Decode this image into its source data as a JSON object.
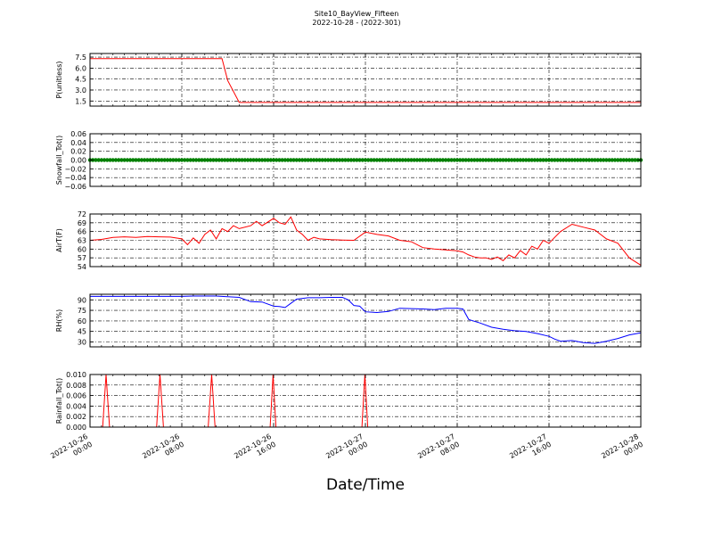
{
  "figure": {
    "title": "Site10_BayView_Fifteen",
    "subtitle": "2022-10-28 - (2022-301)",
    "xlabel": "Date/Time"
  },
  "chart_data": [
    {
      "type": "line",
      "ylabel": "P(unitless)",
      "color": "#ff0000",
      "ylim": [
        0.8,
        8.0
      ],
      "yticks": [
        1.5,
        3.0,
        4.5,
        6.0,
        7.5
      ],
      "ytick_labels": [
        "1.5",
        "3.0",
        "4.5",
        "6.0",
        "7.5"
      ],
      "x_hours": [
        0,
        4,
        8,
        10.5,
        11,
        11.5,
        12,
        13,
        14,
        16,
        20,
        24,
        28,
        32,
        36,
        40,
        44,
        48
      ],
      "y": [
        7.3,
        7.3,
        7.3,
        7.3,
        7.3,
        7.3,
        4.3,
        1.3,
        1.3,
        1.3,
        1.3,
        1.3,
        1.3,
        1.3,
        1.3,
        1.3,
        1.3,
        1.3
      ],
      "x_labels": [
        "2022-10-26\n00:00",
        "2022-10-26\n08:00",
        "2022-10-26\n16:00",
        "2022-10-27\n00:00",
        "2022-10-27\n08:00",
        "2022-10-27\n16:00",
        "2022-10-28\n00:00"
      ],
      "grid": true
    },
    {
      "type": "line",
      "ylabel": "Snowfall_Tot()",
      "color": "#008000",
      "ylim": [
        -0.06,
        0.06
      ],
      "yticks": [
        -0.06,
        -0.04,
        -0.02,
        0.0,
        0.02,
        0.04,
        0.06
      ],
      "ytick_labels": [
        "−0.06",
        "−0.04",
        "−0.02",
        "0.00",
        "0.02",
        "0.04",
        "0.06"
      ],
      "x_hours": [
        0,
        48
      ],
      "y": [
        0,
        0
      ],
      "markers": true,
      "grid": true
    },
    {
      "type": "line",
      "ylabel": "AirT(F)",
      "color": "#ff0000",
      "ylim": [
        54,
        72
      ],
      "yticks": [
        54,
        57,
        60,
        63,
        66,
        69,
        72
      ],
      "ytick_labels": [
        "54",
        "57",
        "60",
        "63",
        "66",
        "69",
        "72"
      ],
      "x_hours": [
        0,
        1,
        2,
        3,
        4,
        5,
        6,
        7,
        8,
        8.5,
        9,
        9.5,
        10,
        10.5,
        11,
        11.5,
        12,
        12.5,
        13,
        14,
        14.5,
        15,
        16,
        16.5,
        17,
        17.5,
        18,
        18.5,
        19,
        19.5,
        20,
        21,
        22,
        23,
        24,
        25,
        26,
        27,
        28,
        29,
        30,
        31,
        32,
        32.5,
        33,
        33.5,
        34,
        34.5,
        35,
        35.5,
        36,
        36.5,
        37,
        37.5,
        38,
        38.5,
        39,
        39.5,
        40,
        40.5,
        41,
        42,
        43,
        44,
        45,
        46,
        47,
        48
      ],
      "y": [
        63,
        63.3,
        64,
        64.2,
        64,
        64.3,
        64.2,
        64.1,
        63.5,
        61.5,
        63.8,
        62,
        65,
        66.5,
        63.5,
        67,
        66,
        68,
        67,
        68,
        69.5,
        68,
        70.5,
        69,
        68.5,
        71,
        66.5,
        65,
        63,
        64,
        63.5,
        63.2,
        63.1,
        63,
        65.8,
        65,
        64.5,
        63,
        62.5,
        60.5,
        60,
        59.7,
        59.4,
        59,
        58,
        57.3,
        57,
        57,
        56.5,
        57.3,
        56,
        58,
        57,
        59.5,
        58,
        61,
        60,
        63,
        62,
        64,
        66,
        68.5,
        67.5,
        66.5,
        63.5,
        62,
        57,
        54.5
      ],
      "grid": true
    },
    {
      "type": "line",
      "ylabel": "RH(%)",
      "color": "#0000ff",
      "ylim": [
        23,
        98
      ],
      "yticks": [
        30,
        45,
        60,
        75,
        90
      ],
      "ytick_labels": [
        "30",
        "45",
        "60",
        "75",
        "90"
      ],
      "x_hours": [
        0,
        2,
        4,
        6,
        8,
        9,
        10,
        11,
        12,
        13,
        14,
        15,
        16,
        16.5,
        17,
        17.5,
        18,
        19,
        20,
        21,
        22,
        22.5,
        23,
        23.5,
        24,
        25,
        26,
        27,
        28,
        29,
        30,
        31,
        32,
        32.5,
        33,
        34,
        35,
        36,
        37,
        38,
        39,
        40,
        40.5,
        41,
        42,
        43,
        44,
        45,
        46,
        47,
        48
      ],
      "y": [
        95,
        95,
        95,
        95,
        95,
        95.5,
        95.5,
        95.5,
        94.5,
        93.5,
        87.5,
        87,
        81,
        80.5,
        79,
        85,
        91,
        93,
        93,
        93.5,
        93.5,
        90,
        82,
        81,
        73,
        72,
        73.5,
        78,
        77.5,
        77,
        76,
        78,
        78,
        77,
        62,
        57,
        51,
        48,
        46,
        45,
        42,
        38,
        34,
        31,
        32,
        29,
        28,
        31,
        35,
        40,
        43
      ],
      "grid": true
    },
    {
      "type": "line",
      "ylabel": "Rainfall_Tot()",
      "color": "#ff0000",
      "ylim": [
        0,
        0.01
      ],
      "yticks": [
        0,
        0.002,
        0.004,
        0.006,
        0.008,
        0.01
      ],
      "ytick_labels": [
        "0.000",
        "0.002",
        "0.004",
        "0.006",
        "0.008",
        "0.010"
      ],
      "x_hours": [
        0,
        1.1,
        1.4,
        1.7,
        5.8,
        6.1,
        6.4,
        10.3,
        10.6,
        10.9,
        15.7,
        15.95,
        16.2,
        23.7,
        23.95,
        24.2,
        48
      ],
      "y": [
        0,
        0,
        0.01,
        0,
        0,
        0.01,
        0,
        0,
        0.01,
        0,
        0,
        0.01,
        0,
        0,
        0.01,
        0,
        0
      ],
      "grid": true
    }
  ]
}
